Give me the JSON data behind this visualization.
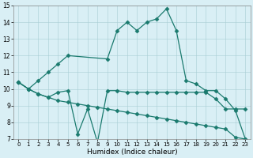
{
  "title": "",
  "xlabel": "Humidex (Indice chaleur)",
  "bg_color": "#d9eff5",
  "line_color": "#1a7a6e",
  "xlim": [
    -0.5,
    23.5
  ],
  "ylim": [
    7,
    15
  ],
  "yticks": [
    7,
    8,
    9,
    10,
    11,
    12,
    13,
    14,
    15
  ],
  "xticks": [
    0,
    1,
    2,
    3,
    4,
    5,
    6,
    7,
    8,
    9,
    10,
    11,
    12,
    13,
    14,
    15,
    16,
    17,
    18,
    19,
    20,
    21,
    22,
    23
  ],
  "series": [
    {
      "x": [
        0,
        1,
        2,
        3,
        4,
        5,
        9,
        10,
        11,
        12,
        13,
        14,
        15,
        16,
        17,
        18,
        19,
        20,
        21,
        22,
        23
      ],
      "y": [
        10.4,
        10.0,
        10.5,
        11.0,
        11.5,
        12.0,
        11.8,
        13.5,
        14.0,
        13.5,
        14.0,
        14.2,
        14.8,
        13.5,
        10.5,
        10.3,
        9.9,
        9.9,
        9.4,
        8.7,
        7.0
      ],
      "marker": "D",
      "markersize": 2.5
    },
    {
      "x": [
        0,
        1,
        2,
        3,
        4,
        5,
        6,
        7,
        8,
        9,
        10,
        11,
        12,
        13,
        14,
        15,
        16,
        17,
        18,
        19,
        20,
        21,
        22,
        23
      ],
      "y": [
        10.4,
        10.0,
        9.7,
        9.5,
        9.8,
        9.9,
        7.3,
        8.8,
        6.8,
        9.9,
        9.9,
        9.8,
        9.8,
        9.8,
        9.8,
        9.8,
        9.8,
        9.8,
        9.8,
        9.8,
        9.4,
        8.8,
        8.8,
        8.8
      ],
      "marker": "D",
      "markersize": 2.5
    },
    {
      "x": [
        0,
        1,
        2,
        3,
        4,
        5,
        6,
        7,
        8,
        9,
        10,
        11,
        12,
        13,
        14,
        15,
        16,
        17,
        18,
        19,
        20,
        21,
        22,
        23
      ],
      "y": [
        10.4,
        10.0,
        9.7,
        9.5,
        9.3,
        9.2,
        9.1,
        9.0,
        8.9,
        8.8,
        8.7,
        8.6,
        8.5,
        8.4,
        8.3,
        8.2,
        8.1,
        8.0,
        7.9,
        7.8,
        7.7,
        7.6,
        7.1,
        7.0
      ],
      "marker": "D",
      "markersize": 2.5
    }
  ]
}
